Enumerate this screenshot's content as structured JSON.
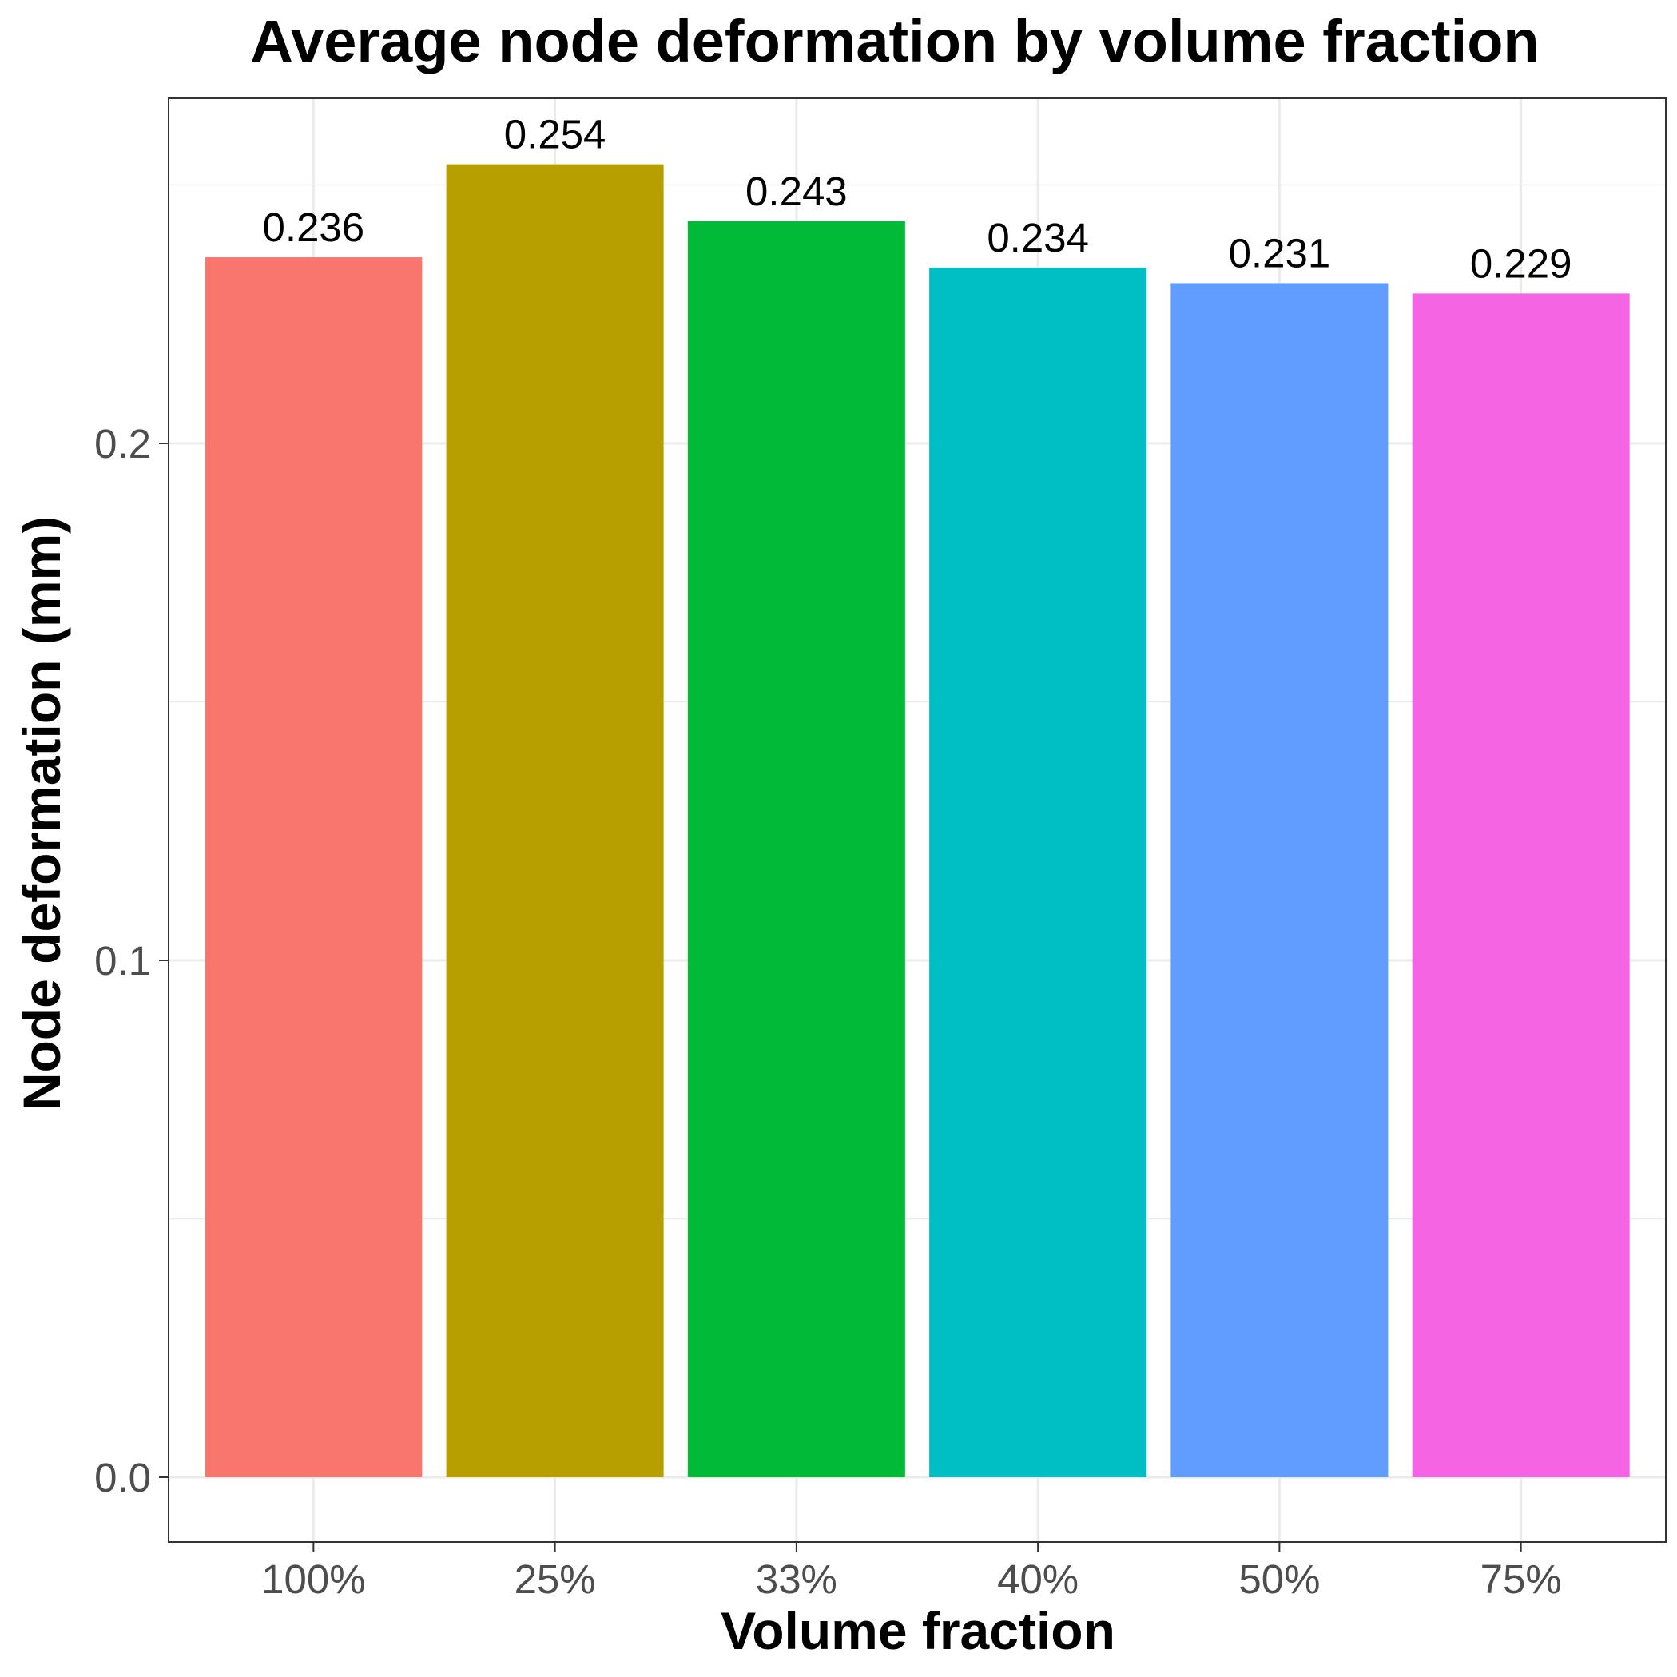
{
  "chart_data": {
    "type": "bar",
    "title": "Average node deformation by volume fraction",
    "xlabel": "Volume fraction",
    "ylabel": "Node deformation (mm)",
    "categories": [
      "100%",
      "25%",
      "33%",
      "40%",
      "50%",
      "75%"
    ],
    "values": [
      0.236,
      0.254,
      0.243,
      0.234,
      0.231,
      0.229
    ],
    "data_labels": [
      "0.236",
      "0.254",
      "0.243",
      "0.234",
      "0.231",
      "0.229"
    ],
    "colors": [
      "#F8766D",
      "#B79F00",
      "#00BA38",
      "#00BFC4",
      "#619CFF",
      "#F564E3"
    ],
    "yticks": [
      0.0,
      0.1,
      0.2
    ],
    "ytick_labels": [
      "0.0",
      "0.1",
      "0.2"
    ],
    "ylim": [
      -0.0125,
      0.2667
    ],
    "grid": true,
    "legend": "none"
  }
}
